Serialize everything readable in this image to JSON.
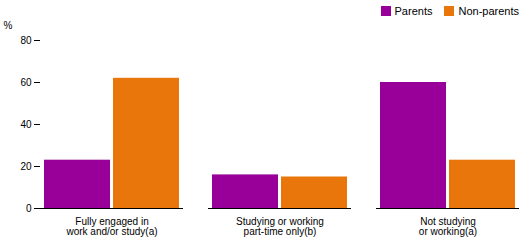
{
  "chart_data": {
    "type": "bar",
    "categories": [
      "Fully engaged in\nwork and/or study(a)",
      "Studying or working\npart-time only(b)",
      "Not studying\nor working(a)"
    ],
    "series": [
      {
        "name": "Parents",
        "color": "#990099",
        "values": [
          23,
          16,
          60
        ]
      },
      {
        "name": "Non-parents",
        "color": "#E8760A",
        "values": [
          62,
          15,
          23
        ]
      }
    ],
    "ylabel": "%",
    "ylim": [
      0,
      80
    ],
    "yticks": [
      0,
      20,
      40,
      60,
      80
    ],
    "legend": "upper right"
  }
}
